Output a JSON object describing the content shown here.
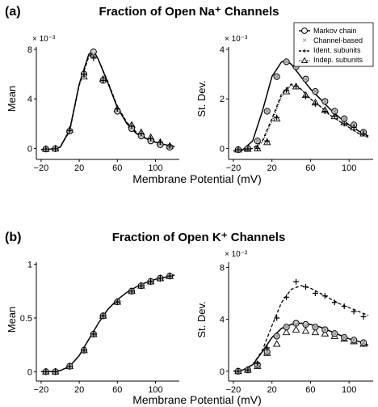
{
  "figure": {
    "panel_a_label": "(a)",
    "panel_a_title": "Fraction of Open Na⁺ Channels",
    "panel_b_label": "(b)",
    "panel_b_title": "Fraction of Open K⁺ Channels",
    "xlabel": "Membrane Potential (mV)"
  },
  "legend": {
    "placement": "top-right of Na st. dev. panel",
    "entries": [
      "Markov chain",
      "Channel-based",
      "Ident. subunits",
      "Indep. subunits"
    ]
  },
  "chart_data": [
    {
      "id": "na-mean",
      "type": "line",
      "title": "",
      "xlabel": "Membrane Potential (mV)",
      "ylabel": "Mean",
      "xlim": [
        -25,
        125
      ],
      "ylim": [
        -0.3,
        8.2
      ],
      "scale_text": "× 10⁻³",
      "xticks": [
        -20,
        20,
        60,
        100
      ],
      "yticks": [
        0,
        4,
        8
      ],
      "ytick_labels": [
        "0",
        "4",
        "8"
      ],
      "series": [
        {
          "name": "Markov chain",
          "style": "solid",
          "x": [
            -20,
            -10,
            0,
            10,
            20,
            30,
            35,
            40,
            50,
            60,
            70,
            80,
            90,
            100,
            110,
            120
          ],
          "values": [
            -0.1,
            -0.05,
            0.1,
            1.5,
            5.2,
            7.6,
            7.9,
            7.2,
            5.3,
            3.3,
            2.0,
            1.2,
            0.8,
            0.5,
            0.3,
            0.15
          ]
        },
        {
          "name": "Ident. subunits",
          "style": "dash",
          "x": [
            -20,
            -10,
            0,
            10,
            20,
            30,
            35,
            40,
            50,
            60,
            70,
            80,
            90,
            100,
            110,
            120
          ],
          "values": [
            -0.1,
            -0.05,
            0.1,
            1.4,
            5.1,
            7.4,
            7.8,
            7.2,
            5.4,
            3.4,
            2.1,
            1.3,
            0.85,
            0.55,
            0.3,
            0.15
          ]
        }
      ],
      "markers": {
        "x": [
          -15,
          -5,
          10,
          25,
          35,
          45,
          60,
          75,
          85,
          95,
          105,
          115
        ],
        "circle": [
          -0.05,
          -0.02,
          1.4,
          6.0,
          7.8,
          5.5,
          3.0,
          1.6,
          1.0,
          0.6,
          0.3,
          0.1
        ],
        "cross": [
          -0.05,
          -0.02,
          1.45,
          5.9,
          7.6,
          5.4,
          3.1,
          1.7,
          1.1,
          0.7,
          0.4,
          0.15
        ],
        "plus": [
          -0.05,
          -0.02,
          1.45,
          6.0,
          7.3,
          5.5,
          3.2,
          1.8,
          1.2,
          0.8,
          0.5,
          0.2
        ],
        "triangle": [
          -0.05,
          -0.02,
          1.5,
          5.8,
          7.6,
          5.6,
          3.2,
          1.9,
          1.3,
          0.9,
          0.5,
          0.2
        ]
      }
    },
    {
      "id": "na-std",
      "type": "line",
      "title": "",
      "xlabel": "Membrane Potential (mV)",
      "ylabel": "St. Dev.",
      "xlim": [
        -25,
        125
      ],
      "ylim": [
        -0.15,
        4.1
      ],
      "scale_text": "× 10⁻³",
      "xticks": [
        -20,
        20,
        60,
        100
      ],
      "yticks": [
        0,
        2,
        4
      ],
      "ytick_labels": [
        "0",
        "2",
        "4"
      ],
      "series": [
        {
          "name": "Markov chain",
          "style": "solid",
          "x": [
            -20,
            -10,
            0,
            10,
            20,
            30,
            35,
            40,
            50,
            60,
            70,
            80,
            90,
            100,
            110,
            120
          ],
          "values": [
            -0.1,
            -0.05,
            0.3,
            1.5,
            2.9,
            3.5,
            3.55,
            3.4,
            2.9,
            2.4,
            2.0,
            1.6,
            1.25,
            0.95,
            0.7,
            0.5
          ]
        },
        {
          "name": "Ident. subunits",
          "style": "dash",
          "x": [
            -20,
            -10,
            0,
            10,
            20,
            30,
            40,
            50,
            60,
            70,
            80,
            90,
            100,
            110,
            120
          ],
          "values": [
            -0.1,
            -0.08,
            0.0,
            0.3,
            1.2,
            2.2,
            2.6,
            2.4,
            2.0,
            1.7,
            1.35,
            1.1,
            0.85,
            0.6,
            0.45
          ]
        },
        {
          "name": "Indep. subunits",
          "style": "dot",
          "x": [
            -20,
            -10,
            0,
            10,
            20,
            30,
            40,
            50,
            60,
            70,
            80,
            90,
            100,
            110,
            120
          ],
          "values": [
            -0.1,
            -0.08,
            0.0,
            0.25,
            1.1,
            2.1,
            2.55,
            2.4,
            2.0,
            1.7,
            1.35,
            1.1,
            0.85,
            0.6,
            0.45
          ]
        }
      ],
      "markers": {
        "x": [
          -15,
          -5,
          5,
          15,
          25,
          35,
          45,
          55,
          65,
          75,
          85,
          95,
          105,
          115
        ],
        "circle": [
          -0.05,
          0.0,
          0.3,
          1.5,
          2.9,
          3.5,
          3.3,
          2.8,
          2.3,
          1.9,
          1.5,
          1.2,
          0.95,
          0.65
        ],
        "cross": [
          -0.05,
          0.0,
          0.3,
          1.5,
          2.9,
          3.5,
          3.3,
          2.8,
          2.3,
          1.9,
          1.5,
          1.2,
          0.95,
          0.65
        ],
        "plus": [
          -0.05,
          -0.02,
          0.0,
          0.3,
          1.25,
          2.35,
          2.5,
          2.1,
          1.8,
          1.5,
          1.3,
          1.0,
          0.85,
          0.6
        ],
        "triangle": [
          -0.05,
          -0.02,
          0.0,
          0.25,
          1.2,
          2.3,
          2.5,
          2.15,
          1.85,
          1.55,
          1.3,
          1.05,
          0.85,
          0.6
        ]
      }
    },
    {
      "id": "k-mean",
      "type": "line",
      "title": "",
      "xlabel": "Membrane Potential (mV)",
      "ylabel": "Mean",
      "xlim": [
        -25,
        125
      ],
      "ylim": [
        -0.02,
        1.02
      ],
      "scale_text": "",
      "xticks": [
        -20,
        20,
        60,
        100
      ],
      "yticks": [
        0,
        0.5,
        1
      ],
      "ytick_labels": [
        "0",
        "0.5",
        "1"
      ],
      "series": [
        {
          "name": "Markov chain",
          "style": "solid",
          "x": [
            -20,
            -10,
            0,
            10,
            20,
            30,
            40,
            50,
            60,
            70,
            80,
            90,
            100,
            110,
            120
          ],
          "values": [
            0.0,
            0.0,
            0.01,
            0.05,
            0.15,
            0.3,
            0.45,
            0.58,
            0.67,
            0.74,
            0.79,
            0.83,
            0.86,
            0.88,
            0.9
          ]
        }
      ],
      "markers": {
        "x": [
          -15,
          -5,
          10,
          25,
          35,
          45,
          60,
          75,
          85,
          95,
          105,
          115
        ],
        "circle": [
          0.0,
          0.0,
          0.05,
          0.2,
          0.35,
          0.52,
          0.65,
          0.75,
          0.8,
          0.84,
          0.87,
          0.89
        ],
        "cross": [
          0.0,
          0.0,
          0.05,
          0.2,
          0.35,
          0.52,
          0.65,
          0.75,
          0.8,
          0.84,
          0.87,
          0.89
        ],
        "plus": [
          0.0,
          0.0,
          0.05,
          0.2,
          0.35,
          0.52,
          0.65,
          0.75,
          0.8,
          0.84,
          0.87,
          0.89
        ],
        "triangle": [
          0.0,
          0.0,
          0.05,
          0.2,
          0.35,
          0.52,
          0.65,
          0.75,
          0.8,
          0.84,
          0.87,
          0.89
        ]
      }
    },
    {
      "id": "k-std",
      "type": "line",
      "title": "",
      "xlabel": "Membrane Potential (mV)",
      "ylabel": "St. Dev.",
      "xlim": [
        -25,
        125
      ],
      "ylim": [
        -0.2,
        8.4
      ],
      "scale_text": "× 10⁻²",
      "xticks": [
        -20,
        20,
        60,
        100
      ],
      "yticks": [
        0,
        4,
        8
      ],
      "ytick_labels": [
        "0",
        "4",
        "8"
      ],
      "series": [
        {
          "name": "Markov chain",
          "style": "solid",
          "x": [
            -20,
            -10,
            0,
            10,
            20,
            30,
            40,
            50,
            60,
            70,
            80,
            90,
            100,
            110,
            120
          ],
          "values": [
            0.0,
            0.1,
            0.5,
            1.5,
            2.6,
            3.3,
            3.6,
            3.7,
            3.6,
            3.4,
            3.1,
            2.8,
            2.5,
            2.3,
            2.0
          ]
        },
        {
          "name": "Ident. subunits",
          "style": "dash",
          "x": [
            -20,
            -10,
            0,
            10,
            20,
            30,
            40,
            50,
            60,
            70,
            80,
            90,
            100,
            110,
            120
          ],
          "values": [
            0.0,
            0.1,
            0.5,
            1.6,
            3.5,
            5.3,
            6.3,
            6.6,
            6.4,
            6.0,
            5.6,
            5.2,
            4.9,
            4.6,
            4.3
          ]
        }
      ],
      "markers": {
        "x": [
          -15,
          -5,
          5,
          15,
          25,
          35,
          45,
          55,
          65,
          75,
          85,
          95,
          105,
          115
        ],
        "circle": [
          0.0,
          0.1,
          0.5,
          1.5,
          2.7,
          3.4,
          3.7,
          3.6,
          3.4,
          3.2,
          2.9,
          2.6,
          2.4,
          2.2
        ],
        "cross": [
          0.0,
          0.1,
          0.5,
          1.5,
          2.7,
          3.4,
          3.6,
          3.5,
          3.4,
          3.2,
          2.9,
          2.6,
          2.4,
          2.2
        ],
        "plus": [
          0.0,
          0.1,
          0.6,
          1.8,
          4.1,
          5.7,
          6.9,
          6.5,
          6.0,
          5.8,
          5.3,
          5.0,
          4.6,
          4.2
        ],
        "triangle": [
          0.0,
          0.1,
          0.4,
          1.4,
          2.1,
          3.0,
          3.2,
          3.1,
          3.0,
          2.9,
          2.7,
          2.5,
          2.3,
          2.1
        ]
      }
    }
  ]
}
